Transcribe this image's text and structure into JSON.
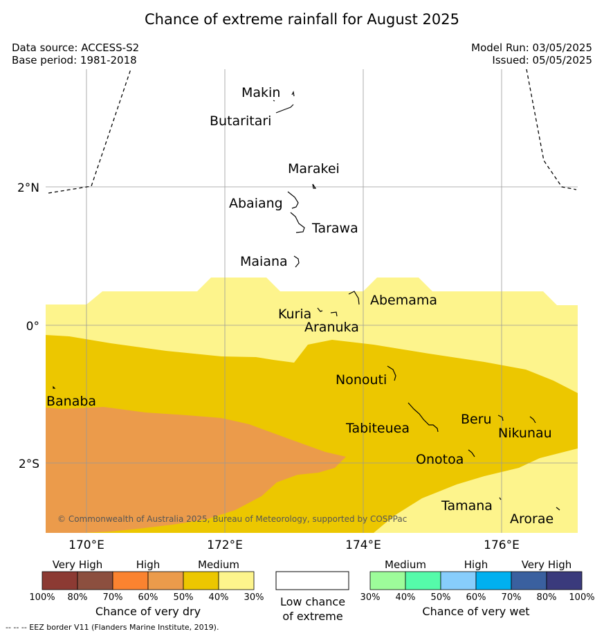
{
  "title": "Chance of extreme rainfall for August 2025",
  "data_source": "Data source: ACCESS-S2",
  "base_period": "Base period: 1981-2018",
  "model_run": "Model Run: 03/05/2025",
  "issued": "Issued: 05/05/2025",
  "copyright": "© Commonwealth of Australia 2025, Bureau of Meteorology, supported by COSPPac",
  "eez_note": "--  --  -- EEZ border V11 (Flanders Marine Institute, 2019).",
  "lat_labels": [
    "2°N",
    "0°",
    "2°S"
  ],
  "lon_labels": [
    "170°E",
    "172°E",
    "174°E",
    "176°E"
  ],
  "islands": {
    "makin": "Makin",
    "butaritari": "Butaritari",
    "marakei": "Marakei",
    "abaiang": "Abaiang",
    "tarawa": "Tarawa",
    "maiana": "Maiana",
    "abemama": "Abemama",
    "kuria": "Kuria",
    "aranuka": "Aranuka",
    "nonouti": "Nonouti",
    "banaba": "Banaba",
    "tabiteuea": "Tabiteuea",
    "beru": "Beru",
    "nikunau": "Nikunau",
    "onotoa": "Onotoa",
    "tamana": "Tamana",
    "arorae": "Arorae"
  },
  "legend": {
    "dry": {
      "headers": [
        "Very High",
        "High",
        "Medium"
      ],
      "ticks": [
        "100%",
        "80%",
        "70%",
        "60%",
        "50%",
        "40%",
        "30%"
      ],
      "colors": [
        "#8c3a33",
        "#8c4f3f",
        "#fb8330",
        "#eb9b4b",
        "#ecc700",
        "#fdf48c"
      ],
      "title": "Chance of very dry"
    },
    "low": {
      "line1": "Low chance",
      "line2": "of extreme",
      "color": "#ffffff"
    },
    "wet": {
      "headers": [
        "Medium",
        "High",
        "Very High"
      ],
      "ticks": [
        "30%",
        "40%",
        "50%",
        "60%",
        "70%",
        "80%",
        "100%"
      ],
      "colors": [
        "#9dfc9a",
        "#55fbaa",
        "#87cdfc",
        "#00b0f0",
        "#3a609f",
        "#3a3a7c"
      ],
      "title": "Chance of very wet"
    }
  },
  "map_colors": {
    "medium_dry_40_50": "#ecc700",
    "medium_dry_30_40": "#fdf48c",
    "high_dry_50_60": "#eb9b4b"
  }
}
